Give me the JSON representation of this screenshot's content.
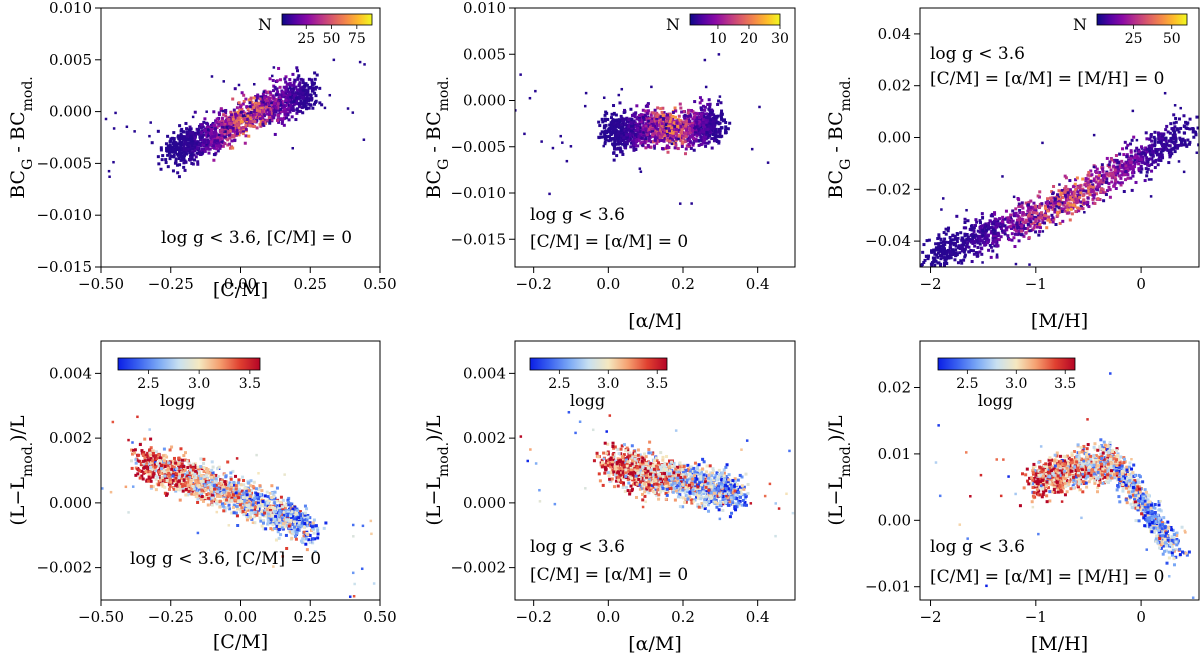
{
  "colormaps": {
    "plasma": [
      "#0d0887",
      "#5302a3",
      "#8b0aa5",
      "#b83289",
      "#db5c68",
      "#f48849",
      "#febd2a",
      "#f0f921"
    ],
    "coolwarm": [
      "#0a1ee6",
      "#3a62f0",
      "#7aa8f5",
      "#c8e0f0",
      "#f5e8c0",
      "#f5a070",
      "#e04030",
      "#b40426"
    ]
  },
  "chart_data": [
    {
      "id": "p1",
      "type": "heatmap",
      "xlabel": "[C/M]",
      "ylabel": "BC_G - BC_mod.",
      "xlim": [
        -0.5,
        0.5
      ],
      "ylim": [
        -0.015,
        0.01
      ],
      "xticks": [
        -0.5,
        -0.25,
        0.0,
        0.25,
        0.5
      ],
      "xtick_labels": [
        "−0.50",
        "−0.25",
        "0.00",
        "0.25",
        "0.50"
      ],
      "yticks": [
        -0.015,
        -0.01,
        -0.005,
        0.0,
        0.005,
        0.01
      ],
      "ytick_labels": [
        "−0.015",
        "−0.010",
        "−0.005",
        "0.000",
        "0.005",
        "0.010"
      ],
      "annotations": [
        "log g < 3.6, [C/M] = 0"
      ],
      "colorbar": {
        "label": "N",
        "cmap": "plasma",
        "range": [
          1,
          90
        ],
        "ticks": [
          25,
          50,
          75
        ],
        "tick_labels": [
          "25",
          "50",
          "75"
        ],
        "placement": "top-right"
      },
      "trend": {
        "x": [
          -0.25,
          -0.1,
          0.0,
          0.1,
          0.25
        ],
        "y": [
          -0.0038,
          -0.0025,
          -0.0008,
          0.0005,
          0.0018
        ]
      },
      "grid": false
    },
    {
      "id": "p2",
      "type": "heatmap",
      "xlabel": "[α/M]",
      "ylabel": "BC_G - BC_mod.",
      "xlim": [
        -0.25,
        0.5
      ],
      "ylim": [
        -0.018,
        0.01
      ],
      "xticks": [
        -0.2,
        0.0,
        0.2,
        0.4
      ],
      "xtick_labels": [
        "−0.2",
        "0.0",
        "0.2",
        "0.4"
      ],
      "yticks": [
        -0.015,
        -0.01,
        -0.005,
        0.0,
        0.005,
        0.01
      ],
      "ytick_labels": [
        "−0.015",
        "−0.010",
        "−0.005",
        "0.000",
        "0.005",
        "0.010"
      ],
      "annotations": [
        "log g < 3.6",
        "[C/M] = [α/M] = 0"
      ],
      "colorbar": {
        "label": "N",
        "cmap": "plasma",
        "range": [
          1,
          30
        ],
        "ticks": [
          10,
          20,
          30
        ],
        "tick_labels": [
          "10",
          "20",
          "30"
        ],
        "placement": "top-right"
      },
      "trend": {
        "x": [
          0.0,
          0.05,
          0.1,
          0.2,
          0.3
        ],
        "y": [
          -0.0035,
          -0.0035,
          -0.003,
          -0.003,
          -0.0025
        ]
      },
      "grid": false
    },
    {
      "id": "p3",
      "type": "heatmap",
      "xlabel": "[M/H]",
      "ylabel": "BC_G - BC_mod.",
      "xlim": [
        -2.1,
        0.55
      ],
      "ylim": [
        -0.05,
        0.05
      ],
      "xticks": [
        -2,
        -1,
        0
      ],
      "xtick_labels": [
        "−2",
        "−1",
        "0"
      ],
      "yticks": [
        -0.04,
        -0.02,
        0.0,
        0.02,
        0.04
      ],
      "ytick_labels": [
        "−0.04",
        "−0.02",
        "0.00",
        "0.02",
        "0.04"
      ],
      "annotations": [
        "log g < 3.6",
        "[C/M] = [α/M] = [M/H] = 0"
      ],
      "colorbar": {
        "label": "N",
        "cmap": "plasma",
        "range": [
          1,
          60
        ],
        "ticks": [
          25,
          50
        ],
        "tick_labels": [
          "25",
          "50"
        ],
        "placement": "top-right"
      },
      "trend": {
        "x": [
          -2.0,
          -1.0,
          -0.5,
          0.0,
          0.4
        ],
        "y": [
          -0.046,
          -0.03,
          -0.02,
          -0.008,
          0.002
        ]
      },
      "grid": false
    },
    {
      "id": "p4",
      "type": "scatter",
      "xlabel": "[C/M]",
      "ylabel": "(L−L_mod.)/L",
      "xlim": [
        -0.5,
        0.5
      ],
      "ylim": [
        -0.003,
        0.005
      ],
      "xticks": [
        -0.5,
        -0.25,
        0.0,
        0.25,
        0.5
      ],
      "xtick_labels": [
        "−0.50",
        "−0.25",
        "0.00",
        "0.25",
        "0.50"
      ],
      "yticks": [
        -0.002,
        0.0,
        0.002,
        0.004
      ],
      "ytick_labels": [
        "−0.002",
        "0.000",
        "0.002",
        "0.004"
      ],
      "annotations": [
        "log g < 3.6, [C/M] = 0"
      ],
      "colorbar": {
        "label": "logg",
        "cmap": "coolwarm",
        "range": [
          2.2,
          3.6
        ],
        "ticks": [
          2.5,
          3.0,
          3.5
        ],
        "tick_labels": [
          "2.5",
          "3.0",
          "3.5"
        ],
        "placement": "top-left"
      },
      "trend": {
        "x": [
          -0.35,
          -0.2,
          0.0,
          0.1,
          0.25
        ],
        "y": [
          0.0012,
          0.0008,
          0.0002,
          -0.0002,
          -0.0008
        ]
      },
      "grid": false
    },
    {
      "id": "p5",
      "type": "scatter",
      "xlabel": "[α/M]",
      "ylabel": "(L−L_mod.)/L",
      "xlim": [
        -0.25,
        0.5
      ],
      "ylim": [
        -0.003,
        0.005
      ],
      "xticks": [
        -0.2,
        0.0,
        0.2,
        0.4
      ],
      "xtick_labels": [
        "−0.2",
        "0.0",
        "0.2",
        "0.4"
      ],
      "yticks": [
        -0.002,
        0.0,
        0.002,
        0.004
      ],
      "ytick_labels": [
        "−0.002",
        "0.000",
        "0.002",
        "0.004"
      ],
      "annotations": [
        "log g < 3.6",
        "[C/M] = [α/M] = 0"
      ],
      "colorbar": {
        "label": "logg",
        "cmap": "coolwarm",
        "range": [
          2.2,
          3.6
        ],
        "ticks": [
          2.5,
          3.0,
          3.5
        ],
        "tick_labels": [
          "2.5",
          "3.0",
          "3.5"
        ],
        "placement": "top-left"
      },
      "trend": {
        "x": [
          0.0,
          0.05,
          0.15,
          0.25,
          0.35
        ],
        "y": [
          0.0012,
          0.001,
          0.0008,
          0.0005,
          0.0003
        ]
      },
      "grid": false
    },
    {
      "id": "p6",
      "type": "scatter",
      "xlabel": "[M/H]",
      "ylabel": "(L−L_mod.)/L",
      "xlim": [
        -2.1,
        0.55
      ],
      "ylim": [
        -0.012,
        0.027
      ],
      "xticks": [
        -2,
        -1,
        0
      ],
      "xtick_labels": [
        "−2",
        "−1",
        "0"
      ],
      "yticks": [
        -0.01,
        0.0,
        0.01,
        0.02
      ],
      "ytick_labels": [
        "−0.01",
        "0.00",
        "0.01",
        "0.02"
      ],
      "annotations": [
        "log g < 3.6",
        "[C/M] = [α/M] = [M/H] = 0"
      ],
      "colorbar": {
        "label": "logg",
        "cmap": "coolwarm",
        "range": [
          2.2,
          3.6
        ],
        "ticks": [
          2.5,
          3.0,
          3.5
        ],
        "tick_labels": [
          "2.5",
          "3.0",
          "3.5"
        ],
        "placement": "top-left"
      },
      "trend": {
        "x": [
          -1.0,
          -0.5,
          -0.3,
          0.0,
          0.3
        ],
        "y": [
          0.006,
          0.008,
          0.009,
          0.003,
          -0.004
        ]
      },
      "grid": false
    }
  ]
}
